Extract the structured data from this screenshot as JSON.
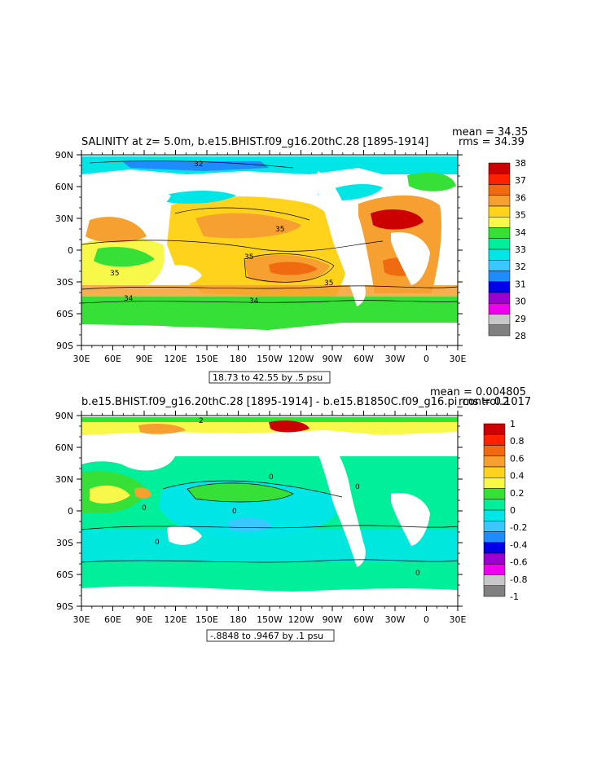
{
  "panels": [
    {
      "id": "top",
      "title": "SALINITY at z=    5.0m, b.e15.BHIST.f09_g16.20thC.28  [1895-1914]",
      "mean_text": "mean = 34.35",
      "rms_text": "rms = 34.39",
      "range_text": "18.73 to 42.55 by .5 psu",
      "colorbar_labels": [
        "38",
        "37",
        "36",
        "35",
        "34",
        "33",
        "32",
        "31",
        "30",
        "29",
        "28"
      ],
      "colorbar_colors": [
        "#cc0000",
        "#ff2200",
        "#f06a10",
        "#f5a030",
        "#ffd21c",
        "#f8f84a",
        "#36e036",
        "#00ef9a",
        "#00e6e6",
        "#38c8ff",
        "#1e8cff",
        "#0000e8",
        "#9a00d0",
        "#ee00ee",
        "#c8c8c8",
        "#808080"
      ],
      "contour_labels": [
        "32",
        "35",
        "35",
        "35",
        "35",
        "34",
        "34"
      ]
    },
    {
      "id": "bottom",
      "title": "b.e15.BHIST.f09_g16.20thC.28  [1895-1914]  -  b.e15.B1850C.f09_g16.pi_control.2",
      "mean_text": "mean = 0.004805",
      "rms_text": "rms = 0.1017",
      "range_text": "-.8848 to .9467 by .1 psu",
      "colorbar_labels": [
        "1",
        "0.8",
        "0.6",
        "0.4",
        "0.2",
        "0",
        "-0.2",
        "-0.4",
        "-0.6",
        "-0.8",
        "-1"
      ],
      "colorbar_colors": [
        "#cc0000",
        "#ff2200",
        "#f06a10",
        "#f5a030",
        "#ffd21c",
        "#f8f84a",
        "#36e036",
        "#00ef9a",
        "#00e6e6",
        "#38c8ff",
        "#1e8cff",
        "#0000e8",
        "#9a00d0",
        "#ee00ee",
        "#c8c8c8",
        "#808080"
      ],
      "contour_labels": [
        "2",
        "0",
        "0",
        "0",
        "0",
        "0",
        "0"
      ]
    }
  ],
  "axes": {
    "x_ticks": [
      "30E",
      "60E",
      "90E",
      "120E",
      "150E",
      "180",
      "150W",
      "120W",
      "90W",
      "60W",
      "30W",
      "0",
      "30E"
    ],
    "y_ticks": [
      "90N",
      "60N",
      "30N",
      "0",
      "30S",
      "60S",
      "90S"
    ]
  },
  "chart_data": [
    {
      "type": "heatmap",
      "title": "SALINITY at z=    5.0m, b.e15.BHIST.f09_g16.20thC.28  [1895-1914]",
      "variable": "surface salinity",
      "units": "psu",
      "mean": 34.35,
      "rms": 34.39,
      "range": [
        18.73,
        42.55
      ],
      "contour_interval": 0.5,
      "colorbar_ticks": [
        28,
        29,
        30,
        31,
        32,
        33,
        34,
        35,
        36,
        37,
        38
      ],
      "x_range": [
        "30E",
        "30E"
      ],
      "y_range": [
        "90S",
        "90N"
      ]
    },
    {
      "type": "heatmap",
      "title": "b.e15.BHIST.f09_g16.20thC.28  [1895-1914]  -  b.e15.B1850C.f09_g16.pi_control.2",
      "variable": "surface salinity difference",
      "units": "psu",
      "mean": 0.004805,
      "rms": 0.1017,
      "range": [
        -0.8848,
        0.9467
      ],
      "contour_interval": 0.1,
      "colorbar_ticks": [
        -1,
        -0.8,
        -0.6,
        -0.4,
        -0.2,
        0,
        0.2,
        0.4,
        0.6,
        0.8,
        1
      ],
      "x_range": [
        "30E",
        "30E"
      ],
      "y_range": [
        "90S",
        "90N"
      ]
    }
  ]
}
